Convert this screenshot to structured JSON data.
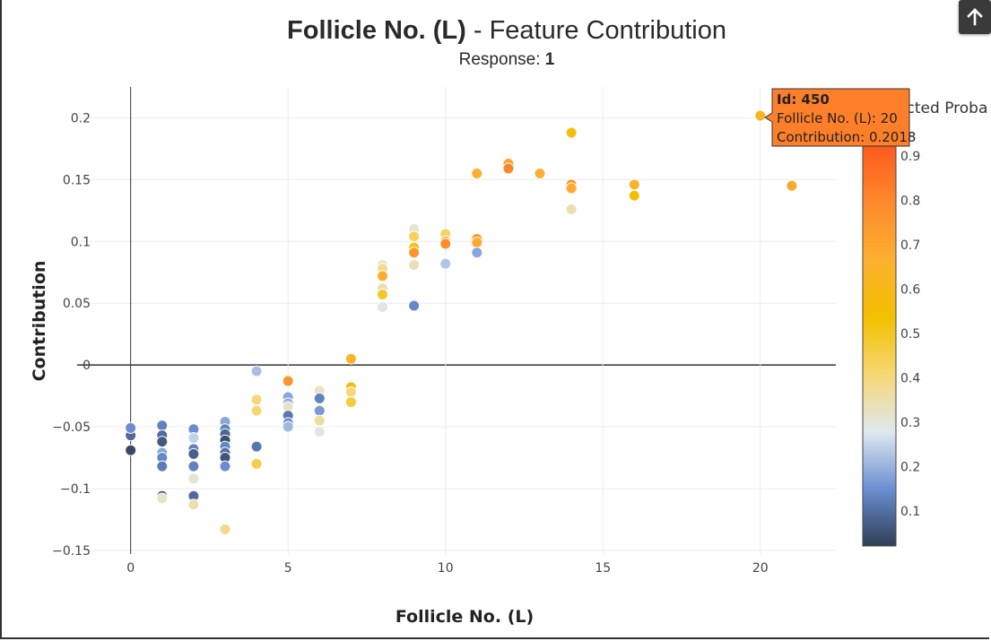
{
  "title": {
    "bold": "Follicle No. (L)",
    "rest": " - Feature Contribution"
  },
  "subtitle": {
    "label": "Response: ",
    "value": "1"
  },
  "scroll_top_button": {
    "icon": "arrow-up-icon"
  },
  "colorbar": {
    "title": "Predicted Proba",
    "ticks": [
      "0.1",
      "0.2",
      "0.3",
      "0.4",
      "0.5",
      "0.6",
      "0.7",
      "0.8",
      "0.9"
    ],
    "stops": [
      "#2f3e56",
      "#6a8fd2",
      "#dfe8ef",
      "#f7d774",
      "#f3c000",
      "#fdb030",
      "#fd8a2c",
      "#fd5a1e"
    ]
  },
  "tooltip": {
    "id_label": "Id: 450",
    "line1": "Follicle No. (L): 20",
    "line2": "Contribution: 0.2018",
    "bg": "#fd7f2a"
  },
  "chart_data": {
    "type": "scatter",
    "title": "Follicle No. (L) - Feature Contribution",
    "subtitle": "Response: 1",
    "xlabel": "Follicle No. (L)",
    "ylabel": "Contribution",
    "xlim": [
      -1.7,
      22.4
    ],
    "ylim": [
      -0.153,
      0.225
    ],
    "xticks": [
      "0",
      "5",
      "10",
      "15",
      "20"
    ],
    "xtick_values": [
      0,
      5,
      10,
      15,
      20
    ],
    "yticks": [
      "0.2",
      "0.15",
      "0.1",
      "0.05",
      "0",
      "−0.05",
      "−0.1",
      "−0.15"
    ],
    "ytick_values": [
      0.2,
      0.15,
      0.1,
      0.05,
      0,
      -0.05,
      -0.1,
      -0.15
    ],
    "colorscale": "predicted probability (0 to 1)",
    "points": [
      {
        "x": 0,
        "y": -0.057,
        "p": 0.08
      },
      {
        "x": 0,
        "y": -0.051,
        "p": 0.14
      },
      {
        "x": 0,
        "y": -0.069,
        "p": 0.02
      },
      {
        "x": 1,
        "y": -0.049,
        "p": 0.12
      },
      {
        "x": 1,
        "y": -0.057,
        "p": 0.08
      },
      {
        "x": 1,
        "y": -0.062,
        "p": 0.05
      },
      {
        "x": 1,
        "y": -0.071,
        "p": 0.18
      },
      {
        "x": 1,
        "y": -0.075,
        "p": 0.13
      },
      {
        "x": 1,
        "y": -0.082,
        "p": 0.11
      },
      {
        "x": 1,
        "y": -0.106,
        "p": 0.04
      },
      {
        "x": 1,
        "y": -0.108,
        "p": 0.33
      },
      {
        "x": 2,
        "y": -0.052,
        "p": 0.14
      },
      {
        "x": 2,
        "y": -0.059,
        "p": 0.25
      },
      {
        "x": 2,
        "y": -0.068,
        "p": 0.12
      },
      {
        "x": 2,
        "y": -0.072,
        "p": 0.06
      },
      {
        "x": 2,
        "y": -0.082,
        "p": 0.12
      },
      {
        "x": 2,
        "y": -0.092,
        "p": 0.32
      },
      {
        "x": 2,
        "y": -0.106,
        "p": 0.08
      },
      {
        "x": 2,
        "y": -0.113,
        "p": 0.36
      },
      {
        "x": 3,
        "y": -0.046,
        "p": 0.18
      },
      {
        "x": 3,
        "y": -0.052,
        "p": 0.12
      },
      {
        "x": 3,
        "y": -0.056,
        "p": 0.07
      },
      {
        "x": 3,
        "y": -0.061,
        "p": 0.03
      },
      {
        "x": 3,
        "y": -0.066,
        "p": 0.13
      },
      {
        "x": 3,
        "y": -0.071,
        "p": 0.09
      },
      {
        "x": 3,
        "y": -0.075,
        "p": 0.04
      },
      {
        "x": 3,
        "y": -0.082,
        "p": 0.14
      },
      {
        "x": 3,
        "y": -0.133,
        "p": 0.4
      },
      {
        "x": 4,
        "y": -0.005,
        "p": 0.22
      },
      {
        "x": 4,
        "y": -0.028,
        "p": 0.42
      },
      {
        "x": 4,
        "y": -0.037,
        "p": 0.43
      },
      {
        "x": 4,
        "y": -0.066,
        "p": 0.1
      },
      {
        "x": 4,
        "y": -0.08,
        "p": 0.48
      },
      {
        "x": 5,
        "y": -0.013,
        "p": 0.82
      },
      {
        "x": 5,
        "y": -0.026,
        "p": 0.18
      },
      {
        "x": 5,
        "y": -0.031,
        "p": 0.19
      },
      {
        "x": 5,
        "y": -0.034,
        "p": 0.33
      },
      {
        "x": 5,
        "y": -0.041,
        "p": 0.1
      },
      {
        "x": 5,
        "y": -0.047,
        "p": 0.14
      },
      {
        "x": 5,
        "y": -0.05,
        "p": 0.21
      },
      {
        "x": 6,
        "y": -0.021,
        "p": 0.34
      },
      {
        "x": 6,
        "y": -0.027,
        "p": 0.12
      },
      {
        "x": 6,
        "y": -0.037,
        "p": 0.16
      },
      {
        "x": 6,
        "y": -0.045,
        "p": 0.38
      },
      {
        "x": 6,
        "y": -0.054,
        "p": 0.3
      },
      {
        "x": 7,
        "y": 0.005,
        "p": 0.7
      },
      {
        "x": 7,
        "y": -0.018,
        "p": 0.62
      },
      {
        "x": 7,
        "y": -0.022,
        "p": 0.42
      },
      {
        "x": 7,
        "y": -0.03,
        "p": 0.5
      },
      {
        "x": 8,
        "y": 0.081,
        "p": 0.33
      },
      {
        "x": 8,
        "y": 0.078,
        "p": 0.4
      },
      {
        "x": 8,
        "y": 0.072,
        "p": 0.73
      },
      {
        "x": 8,
        "y": 0.062,
        "p": 0.36
      },
      {
        "x": 8,
        "y": 0.057,
        "p": 0.52
      },
      {
        "x": 8,
        "y": 0.047,
        "p": 0.3
      },
      {
        "x": 9,
        "y": 0.11,
        "p": 0.32
      },
      {
        "x": 9,
        "y": 0.104,
        "p": 0.46
      },
      {
        "x": 9,
        "y": 0.095,
        "p": 0.55
      },
      {
        "x": 9,
        "y": 0.091,
        "p": 0.81
      },
      {
        "x": 9,
        "y": 0.081,
        "p": 0.35
      },
      {
        "x": 9,
        "y": 0.048,
        "p": 0.13
      },
      {
        "x": 10,
        "y": 0.106,
        "p": 0.45
      },
      {
        "x": 10,
        "y": 0.1,
        "p": 0.7
      },
      {
        "x": 10,
        "y": 0.098,
        "p": 0.85
      },
      {
        "x": 10,
        "y": 0.082,
        "p": 0.23
      },
      {
        "x": 11,
        "y": 0.155,
        "p": 0.72
      },
      {
        "x": 11,
        "y": 0.102,
        "p": 0.82
      },
      {
        "x": 11,
        "y": 0.099,
        "p": 0.74
      },
      {
        "x": 11,
        "y": 0.091,
        "p": 0.18
      },
      {
        "x": 12,
        "y": 0.163,
        "p": 0.76
      },
      {
        "x": 12,
        "y": 0.159,
        "p": 0.87
      },
      {
        "x": 13,
        "y": 0.155,
        "p": 0.71
      },
      {
        "x": 14,
        "y": 0.188,
        "p": 0.6
      },
      {
        "x": 14,
        "y": 0.146,
        "p": 0.84
      },
      {
        "x": 14,
        "y": 0.143,
        "p": 0.74
      },
      {
        "x": 14,
        "y": 0.126,
        "p": 0.36
      },
      {
        "x": 16,
        "y": 0.146,
        "p": 0.7
      },
      {
        "x": 16,
        "y": 0.137,
        "p": 0.58
      },
      {
        "x": 20,
        "y": 0.2018,
        "p": 0.68
      },
      {
        "x": 21,
        "y": 0.145,
        "p": 0.75
      }
    ]
  }
}
